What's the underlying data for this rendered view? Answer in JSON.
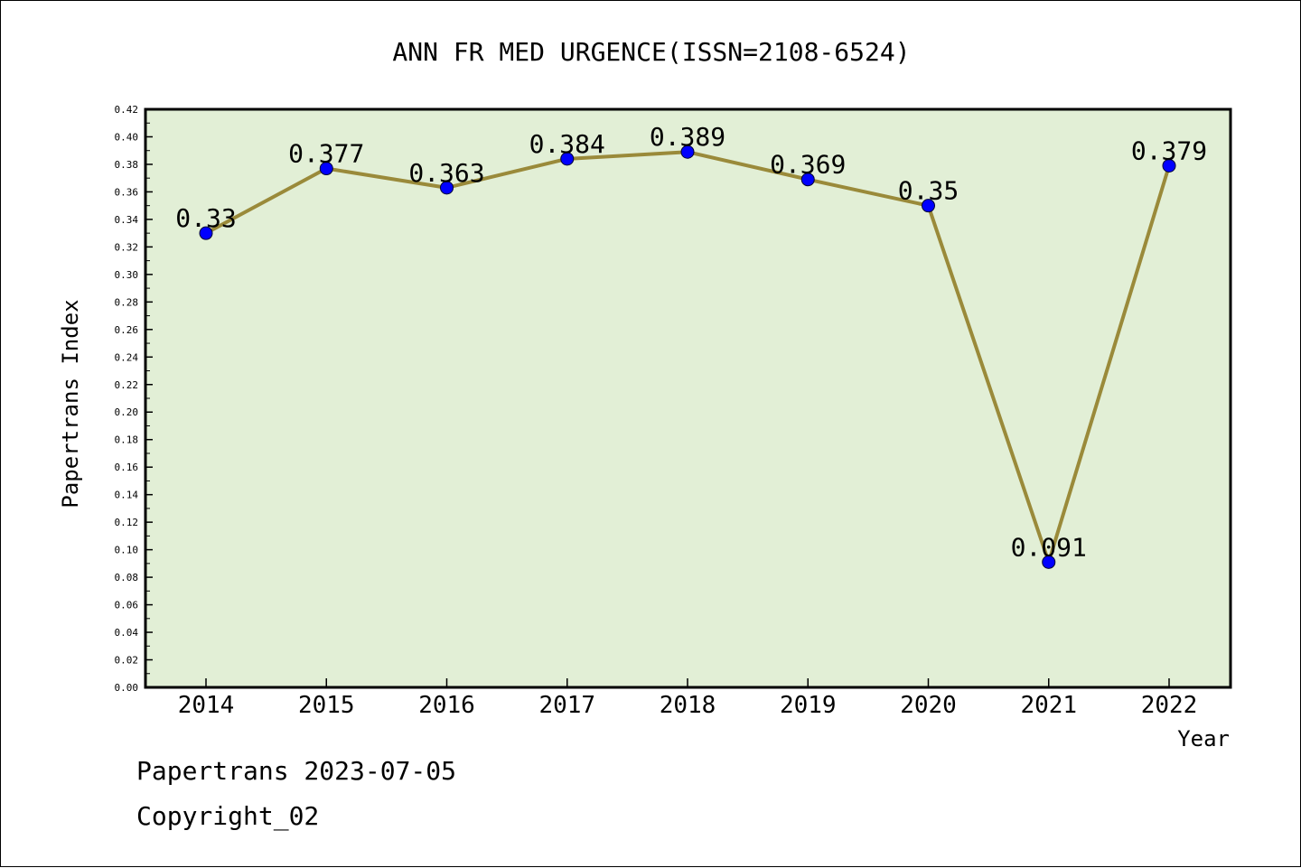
{
  "chart_data": {
    "type": "line",
    "title": "ANN FR MED URGENCE(ISSN=2108-6524)",
    "xlabel": "Year",
    "ylabel": "Papertrans Index",
    "categories": [
      "2014",
      "2015",
      "2016",
      "2017",
      "2018",
      "2019",
      "2020",
      "2021",
      "2022"
    ],
    "values": [
      0.33,
      0.377,
      0.363,
      0.384,
      0.389,
      0.369,
      0.35,
      0.091,
      0.379
    ],
    "data_labels": [
      "0.33",
      "0.377",
      "0.363",
      "0.384",
      "0.389",
      "0.369",
      "0.35",
      "0.091",
      "0.379"
    ],
    "ylim": [
      0,
      0.42
    ],
    "y_ticks": [
      "0.00",
      "0.02",
      "0.04",
      "0.06",
      "0.08",
      "0.10",
      "0.12",
      "0.14",
      "0.16",
      "0.18",
      "0.20",
      "0.22",
      "0.24",
      "0.26",
      "0.28",
      "0.30",
      "0.32",
      "0.34",
      "0.36",
      "0.38",
      "0.40",
      "0.42"
    ],
    "grid": false,
    "legend": "none",
    "colors": {
      "plot_background": "#e2efd6",
      "line": "#9a8a3a",
      "marker": "#0000ff",
      "axis": "#000000"
    }
  },
  "footer": {
    "line1": "Papertrans 2023-07-05",
    "line2": "Copyright_02"
  }
}
